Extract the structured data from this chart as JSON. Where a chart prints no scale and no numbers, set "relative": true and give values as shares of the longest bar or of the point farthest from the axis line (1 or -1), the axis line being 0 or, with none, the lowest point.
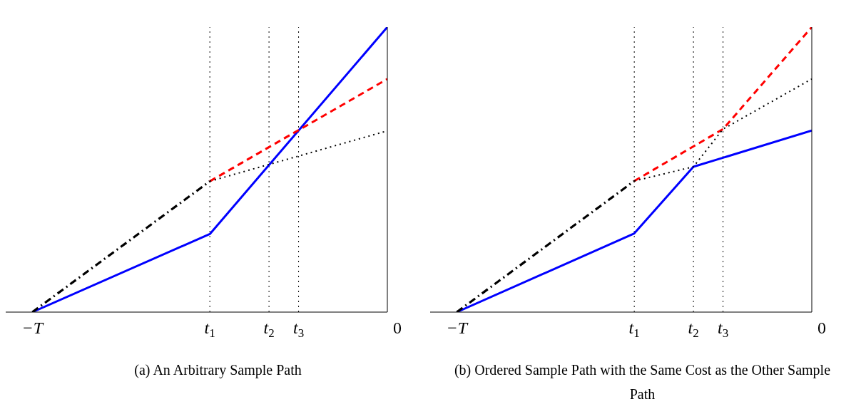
{
  "chart_data": [
    {
      "type": "line",
      "title": "(a) An Arbitrary Sample Path",
      "relative": true,
      "marker": "none",
      "categories": [
        "−T",
        null,
        null,
        null,
        null,
        null,
        "t$_{1}$",
        null,
        "t$_{2}$",
        "t$_{3}$",
        null,
        null,
        "0"
      ],
      "series": [
        {
          "color": "#0000ff",
          "line_style": "solid",
          "x": [
            "−T",
            "t$_{1}$",
            "0"
          ],
          "values": [
            0,
            0.274,
            1
          ]
        },
        {
          "color": "#000000",
          "line_style": "dashdot",
          "x": [
            "−T",
            "t$_{1}$"
          ],
          "values": [
            0,
            0.459
          ]
        },
        {
          "color": "#ff0000",
          "line_style": "dashed",
          "x": [
            "t$_{1}$",
            "0"
          ],
          "values": [
            0.459,
            0.818
          ]
        },
        {
          "color": "#000000",
          "line_style": "dotted",
          "x": [
            "t$_{1}$",
            "0"
          ],
          "values": [
            0.459,
            0.636
          ]
        }
      ],
      "ref_lines": [
        {
          "axis": "x",
          "value": "t$_{1}$",
          "color": "#000000",
          "line_style": "dotted"
        },
        {
          "axis": "x",
          "value": "t$_{2}$",
          "color": "#000000",
          "line_style": "dotted"
        },
        {
          "axis": "x",
          "value": "t$_{3}$",
          "color": "#000000",
          "line_style": "dotted"
        }
      ]
    },
    {
      "type": "line",
      "title": "(b) Ordered Sample Path with the Same Cost as the Other Sample Path",
      "relative": true,
      "marker": "none",
      "categories": [
        "−T",
        null,
        null,
        null,
        null,
        null,
        "t$_{1}$",
        null,
        "t$_{2}$",
        "t$_{3}$",
        null,
        null,
        "0"
      ],
      "series": [
        {
          "color": "#0000ff",
          "line_style": "solid",
          "x": [
            "−T",
            "t$_{1}$",
            "t$_{2}$",
            "0"
          ],
          "values": [
            0,
            0.276,
            0.51,
            0.637
          ]
        },
        {
          "color": "#000000",
          "line_style": "dashdot",
          "x": [
            "−T",
            "t$_{1}$"
          ],
          "values": [
            0,
            0.46
          ]
        },
        {
          "color": "#ff0000",
          "line_style": "dashed",
          "x": [
            "t$_{1}$",
            "t$_{3}$",
            "0"
          ],
          "values": [
            0.46,
            0.642,
            1
          ]
        },
        {
          "color": "#000000",
          "line_style": "dotted",
          "x": [
            "t$_{1}$",
            "t$_{2}$",
            "t$_{3}$",
            "0"
          ],
          "values": [
            0.46,
            0.51,
            0.642,
            0.818
          ]
        }
      ],
      "ref_lines": [
        {
          "axis": "x",
          "value": "t$_{1}$",
          "color": "#000000",
          "line_style": "dotted"
        },
        {
          "axis": "x",
          "value": "t$_{2}$",
          "color": "#000000",
          "line_style": "dotted"
        },
        {
          "axis": "x",
          "value": "t$_{3}$",
          "color": "#000000",
          "line_style": "dotted"
        }
      ]
    }
  ]
}
